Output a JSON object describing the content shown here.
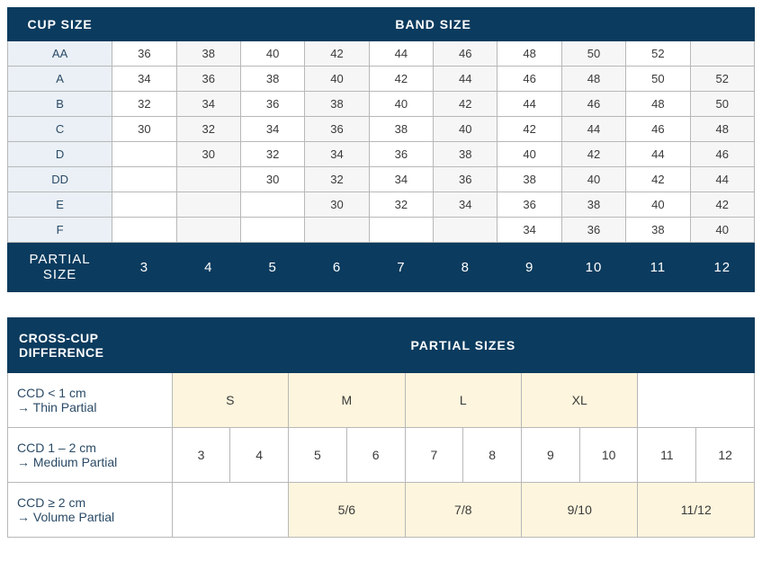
{
  "table1": {
    "header": {
      "cup_size": "CUP SIZE",
      "band_size": "BAND SIZE"
    },
    "rows": [
      {
        "cup": "AA",
        "cells": [
          "36",
          "38",
          "40",
          "42",
          "44",
          "46",
          "48",
          "50",
          "52",
          ""
        ]
      },
      {
        "cup": "A",
        "cells": [
          "34",
          "36",
          "38",
          "40",
          "42",
          "44",
          "46",
          "48",
          "50",
          "52"
        ]
      },
      {
        "cup": "B",
        "cells": [
          "32",
          "34",
          "36",
          "38",
          "40",
          "42",
          "44",
          "46",
          "48",
          "50"
        ]
      },
      {
        "cup": "C",
        "cells": [
          "30",
          "32",
          "34",
          "36",
          "38",
          "40",
          "42",
          "44",
          "46",
          "48"
        ]
      },
      {
        "cup": "D",
        "cells": [
          "",
          "30",
          "32",
          "34",
          "36",
          "38",
          "40",
          "42",
          "44",
          "46"
        ]
      },
      {
        "cup": "DD",
        "cells": [
          "",
          "",
          "30",
          "32",
          "34",
          "36",
          "38",
          "40",
          "42",
          "44"
        ]
      },
      {
        "cup": "E",
        "cells": [
          "",
          "",
          "",
          "30",
          "32",
          "34",
          "36",
          "38",
          "40",
          "42"
        ]
      },
      {
        "cup": "F",
        "cells": [
          "",
          "",
          "",
          "",
          "",
          "",
          "34",
          "36",
          "38",
          "40"
        ]
      }
    ],
    "footer": {
      "label": "PARTIAL  SIZE",
      "cells": [
        "3",
        "4",
        "5",
        "6",
        "7",
        "8",
        "9",
        "10",
        "11",
        "12"
      ]
    }
  },
  "table2": {
    "header": {
      "ccd": "CROSS-CUP DIFFERENCE",
      "partial_sizes": "PARTIAL SIZES"
    },
    "rows": [
      {
        "label_line1": "CCD < 1 cm",
        "label_line2": "→ Thin Partial",
        "cells": [
          {
            "text": "S",
            "span": 2,
            "cream": true
          },
          {
            "text": "M",
            "span": 2,
            "cream": true
          },
          {
            "text": "L",
            "span": 2,
            "cream": true
          },
          {
            "text": "XL",
            "span": 2,
            "cream": true
          },
          {
            "text": "",
            "span": 2,
            "cream": false
          }
        ]
      },
      {
        "label_line1": "CCD 1 – 2 cm",
        "label_line2": "→ Medium Partial",
        "cells": [
          {
            "text": "3",
            "span": 1
          },
          {
            "text": "4",
            "span": 1
          },
          {
            "text": "5",
            "span": 1
          },
          {
            "text": "6",
            "span": 1
          },
          {
            "text": "7",
            "span": 1
          },
          {
            "text": "8",
            "span": 1
          },
          {
            "text": "9",
            "span": 1
          },
          {
            "text": "10",
            "span": 1
          },
          {
            "text": "11",
            "span": 1
          },
          {
            "text": "12",
            "span": 1
          }
        ]
      },
      {
        "label_line1": "CCD ≥ 2 cm",
        "label_line2": "→ Volume Partial",
        "cells": [
          {
            "text": "",
            "span": 2,
            "cream": false
          },
          {
            "text": "5/6",
            "span": 2,
            "cream": true
          },
          {
            "text": "7/8",
            "span": 2,
            "cream": true
          },
          {
            "text": "9/10",
            "span": 2,
            "cream": true
          },
          {
            "text": "11/12",
            "span": 2,
            "cream": true
          }
        ]
      }
    ]
  },
  "colors": {
    "header_bg": "#0b3b5e",
    "header_fg": "#ffffff",
    "cup_label_bg": "#eaf0f5",
    "cream": "#fdf5dd",
    "border": "#b8b8b8"
  }
}
